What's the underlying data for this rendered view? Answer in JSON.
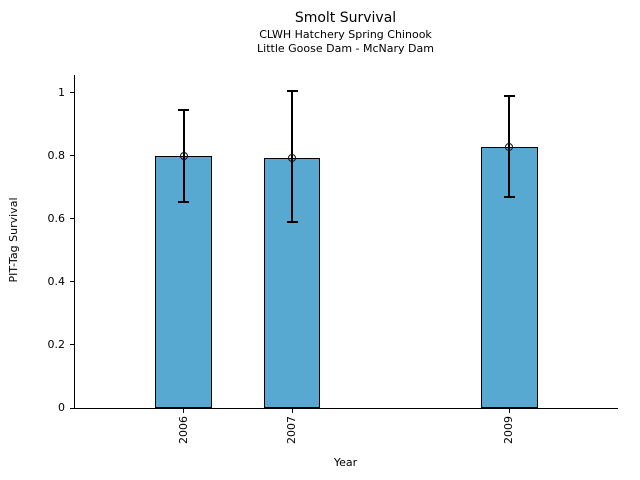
{
  "chart_data": {
    "type": "bar",
    "title": "Smolt Survival",
    "subtitles": [
      "CLWH Hatchery Spring Chinook",
      "Little Goose Dam - McNary Dam"
    ],
    "xlabel": "Year",
    "ylabel": "PIT-Tag Survival",
    "categories": [
      2006,
      2007,
      2009
    ],
    "values": [
      0.8,
      0.795,
      0.83
    ],
    "error_low": [
      0.655,
      0.59,
      0.67
    ],
    "error_high": [
      0.945,
      1.005,
      0.99
    ],
    "xlim": [
      2005,
      2010
    ],
    "ylim": [
      0,
      1.057
    ],
    "yticks": [
      0,
      0.2,
      0.4,
      0.6,
      0.8,
      1
    ],
    "ytick_labels": [
      "0",
      "0.2",
      "0.4",
      "0.6",
      "0.8",
      "1"
    ],
    "bar_width_years": 0.52,
    "bar_color": "#57A9D2",
    "bar_edge_color": "#000000",
    "error_color": "#000000",
    "marker": "open-circle",
    "grid": false,
    "legend": null,
    "spines": [
      "left",
      "bottom"
    ]
  }
}
